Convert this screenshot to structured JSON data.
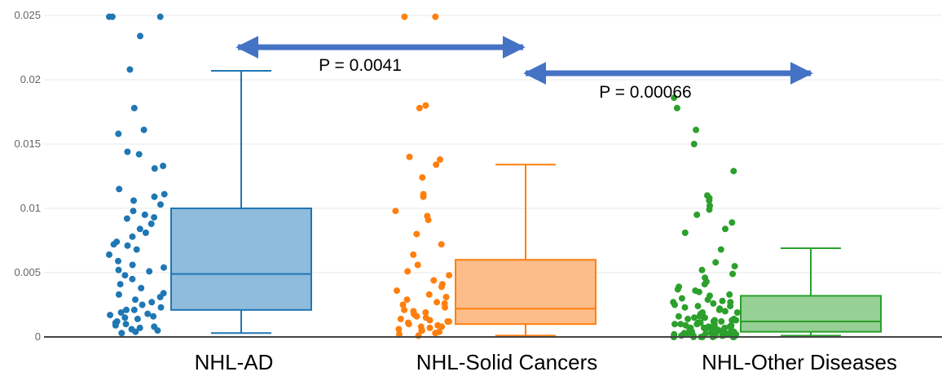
{
  "chart_data": {
    "type": "box",
    "ylim": [
      0,
      0.025
    ],
    "yticks": [
      "0",
      "0.005",
      "0.01",
      "0.015",
      "0.02",
      "0.025"
    ],
    "grid": true,
    "categories": [
      "NHL-AD",
      "NHL-Solid Cancers",
      "NHL-Other Diseases"
    ],
    "series": [
      {
        "category": "NHL-AD",
        "color": "#1f77b4",
        "box_fill": "#8fbbdc",
        "whisker_low": 0.0003,
        "q1": 0.0021,
        "median": 0.0049,
        "q3": 0.01,
        "whisker_high": 0.0207,
        "points": [
          0.0249,
          0.0249,
          0.0249,
          0.0234,
          0.0208,
          0.0178,
          0.0161,
          0.0158,
          0.0144,
          0.0142,
          0.0133,
          0.0131,
          0.0115,
          0.0111,
          0.0109,
          0.0106,
          0.0103,
          0.0098,
          0.0095,
          0.0092,
          0.0088,
          0.0084,
          0.0081,
          0.0078,
          0.0074,
          0.0071,
          0.0068,
          0.0064,
          0.0059,
          0.0056,
          0.0054,
          0.0051,
          0.0048,
          0.0045,
          0.0041,
          0.0038,
          0.0034,
          0.0031,
          0.0029,
          0.0027,
          0.0025,
          0.0023,
          0.0021,
          0.0019,
          0.0018,
          0.0016,
          0.0015,
          0.0014,
          0.0012,
          0.0011,
          0.001,
          0.0009,
          0.0008,
          0.0007,
          0.0006,
          0.0005,
          0.0004,
          0.0003,
          0.0021,
          0.0033,
          0.0052,
          0.0072,
          0.0093,
          0.0017
        ]
      },
      {
        "category": "NHL-Solid Cancers",
        "color": "#ff7f0e",
        "box_fill": "#fdbd8a",
        "whisker_low": 0.0001,
        "q1": 0.001,
        "median": 0.0022,
        "q3": 0.006,
        "whisker_high": 0.0134,
        "points": [
          0.0249,
          0.0249,
          0.018,
          0.0178,
          0.014,
          0.0138,
          0.0134,
          0.0124,
          0.0111,
          0.0109,
          0.0098,
          0.0094,
          0.0091,
          0.008,
          0.0072,
          0.0064,
          0.0056,
          0.0051,
          0.0048,
          0.0044,
          0.0041,
          0.0039,
          0.0036,
          0.0033,
          0.0031,
          0.0029,
          0.0027,
          0.0025,
          0.0023,
          0.0021,
          0.002,
          0.0019,
          0.0017,
          0.0016,
          0.0015,
          0.0014,
          0.0013,
          0.0012,
          0.0011,
          0.001,
          0.0009,
          0.0008,
          0.0007,
          0.0006,
          0.0005,
          0.0004,
          0.0003,
          0.0002,
          0.0001,
          0.0012,
          0.0026,
          0.0008,
          0.0018,
          0.0005
        ]
      },
      {
        "category": "NHL-Other Diseases",
        "color": "#2ca02c",
        "box_fill": "#96d095",
        "whisker_low": 0.0001,
        "q1": 0.0004,
        "median": 0.0012,
        "q3": 0.0032,
        "whisker_high": 0.0069,
        "points": [
          0.0186,
          0.0178,
          0.0161,
          0.015,
          0.0129,
          0.011,
          0.0108,
          0.0106,
          0.0102,
          0.0099,
          0.0095,
          0.0089,
          0.0084,
          0.0081,
          0.0068,
          0.0058,
          0.0055,
          0.0052,
          0.0049,
          0.0046,
          0.0043,
          0.0041,
          0.0039,
          0.0037,
          0.0035,
          0.0033,
          0.0032,
          0.003,
          0.0029,
          0.0028,
          0.0027,
          0.0026,
          0.0025,
          0.0024,
          0.0023,
          0.0022,
          0.0021,
          0.002,
          0.0019,
          0.0018,
          0.0017,
          0.0016,
          0.0016,
          0.0015,
          0.0015,
          0.0014,
          0.0014,
          0.0013,
          0.0013,
          0.0012,
          0.0012,
          0.0011,
          0.0011,
          0.001,
          0.001,
          0.001,
          0.0009,
          0.0009,
          0.0009,
          0.0008,
          0.0008,
          0.0008,
          0.0007,
          0.0007,
          0.0007,
          0.0006,
          0.0006,
          0.0006,
          0.0005,
          0.0005,
          0.0005,
          0.0005,
          0.0004,
          0.0004,
          0.0004,
          0.0004,
          0.0003,
          0.0003,
          0.0003,
          0.0003,
          0.0003,
          0.0002,
          0.0002,
          0.0002,
          0.0002,
          0.0002,
          0.0002,
          0.0001,
          0.0001,
          0.0001,
          0.0001,
          0.0001,
          0.0001,
          0.0001,
          0.0,
          0.0,
          0.0,
          0.0,
          0.0,
          0.0,
          0.0,
          0.0,
          0.0036,
          0.0024,
          0.0019,
          0.0013,
          0.0008,
          0.0004,
          0.0015,
          0.0027,
          0.001,
          0.0006
        ]
      }
    ],
    "annotations": [
      {
        "text": "P = 0.0041",
        "from": "NHL-AD",
        "to": "NHL-Solid Cancers",
        "color": "#4472c4"
      },
      {
        "text": "P = 0.00066",
        "from": "NHL-Solid Cancers",
        "to": "NHL-Other Diseases",
        "color": "#4472c4"
      }
    ]
  }
}
